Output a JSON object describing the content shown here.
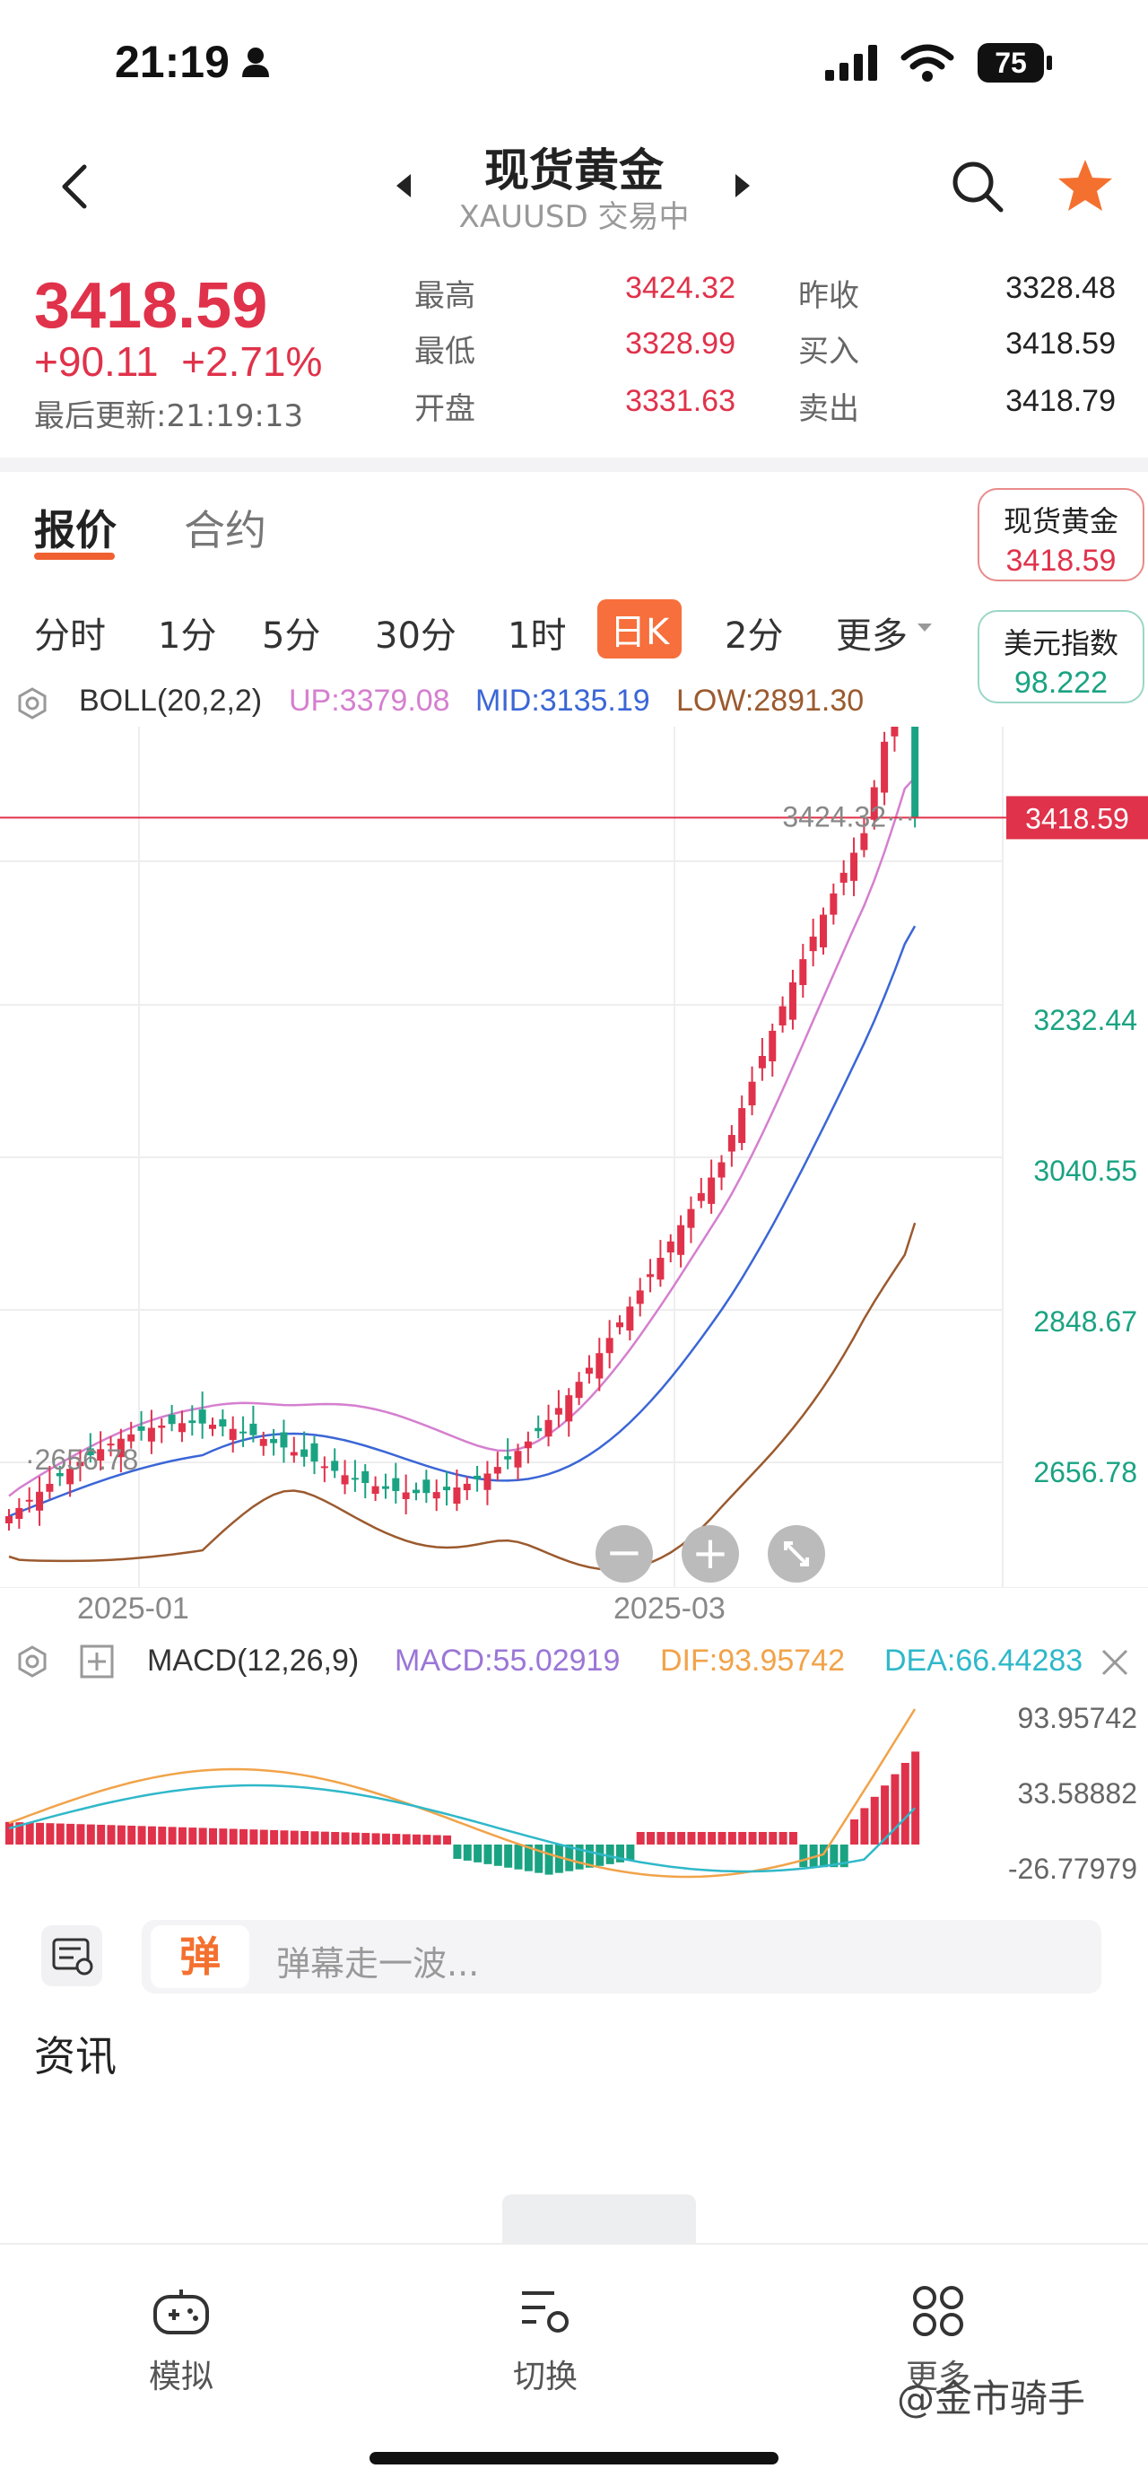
{
  "status": {
    "time": "21:19",
    "battery": "75"
  },
  "header": {
    "title": "现货黄金",
    "subtitle": "XAUUSD 交易中"
  },
  "quote": {
    "price": "3418.59",
    "change": "+90.11",
    "change_pct": "+2.71%",
    "updated": "最后更新:21:19:13",
    "stats": [
      {
        "label": "最高",
        "value": "3424.32"
      },
      {
        "label": "最低",
        "value": "3328.99"
      },
      {
        "label": "开盘",
        "value": "3331.63"
      },
      {
        "label": "昨收",
        "value": "3328.48"
      },
      {
        "label": "买入",
        "value": "3418.59"
      },
      {
        "label": "卖出",
        "value": "3418.79"
      }
    ]
  },
  "tabs": {
    "active": "报价",
    "inactive": "合约"
  },
  "side_cards": [
    {
      "name": "现货黄金",
      "value": "3418.59"
    },
    {
      "name": "美元指数",
      "value": "98.222"
    }
  ],
  "periods": [
    "分时",
    "1分",
    "5分",
    "30分",
    "1时",
    "日K",
    "2分",
    "更多"
  ],
  "active_period": "日K",
  "boll": {
    "label": "BOLL(20,2,2)",
    "up": "UP:3379.08",
    "mid": "MID:3135.19",
    "low": "LOW:2891.30"
  },
  "macd": {
    "label": "MACD(12,26,9)",
    "macd": "MACD:55.02919",
    "dif": "DIF:93.95742",
    "dea": "DEA:66.44283"
  },
  "chart_data": {
    "type": "candlestick",
    "price_axis_ticks": [
      "3232.44",
      "3040.55",
      "2848.67",
      "2656.78"
    ],
    "price_axis_range": [
      2560,
      3520
    ],
    "x_labels": [
      "2025-01",
      "2025-03"
    ],
    "last_price_tag": "3418.59",
    "high_marker": "3424.32",
    "low_marker": "2656.78",
    "macd_axis_ticks": [
      "93.95742",
      "33.58882",
      "-26.77979"
    ],
    "colors": {
      "up": "#e0324a",
      "down": "#1aa382",
      "boll_up": "#d57fcf",
      "boll_mid": "#3b66d6",
      "boll_low": "#9b5a2e",
      "dif": "#f1a34a",
      "dea": "#2fb8c9"
    }
  },
  "input": {
    "placeholder": "弹幕走一波...",
    "badge": "弹"
  },
  "news": {
    "title": "资讯"
  },
  "bottom_nav": [
    {
      "label": "模拟",
      "icon": "gamepad-icon"
    },
    {
      "label": "切换",
      "icon": "switch-icon"
    },
    {
      "label": "更多",
      "icon": "grid-icon"
    }
  ],
  "watermark": "@金市骑手"
}
